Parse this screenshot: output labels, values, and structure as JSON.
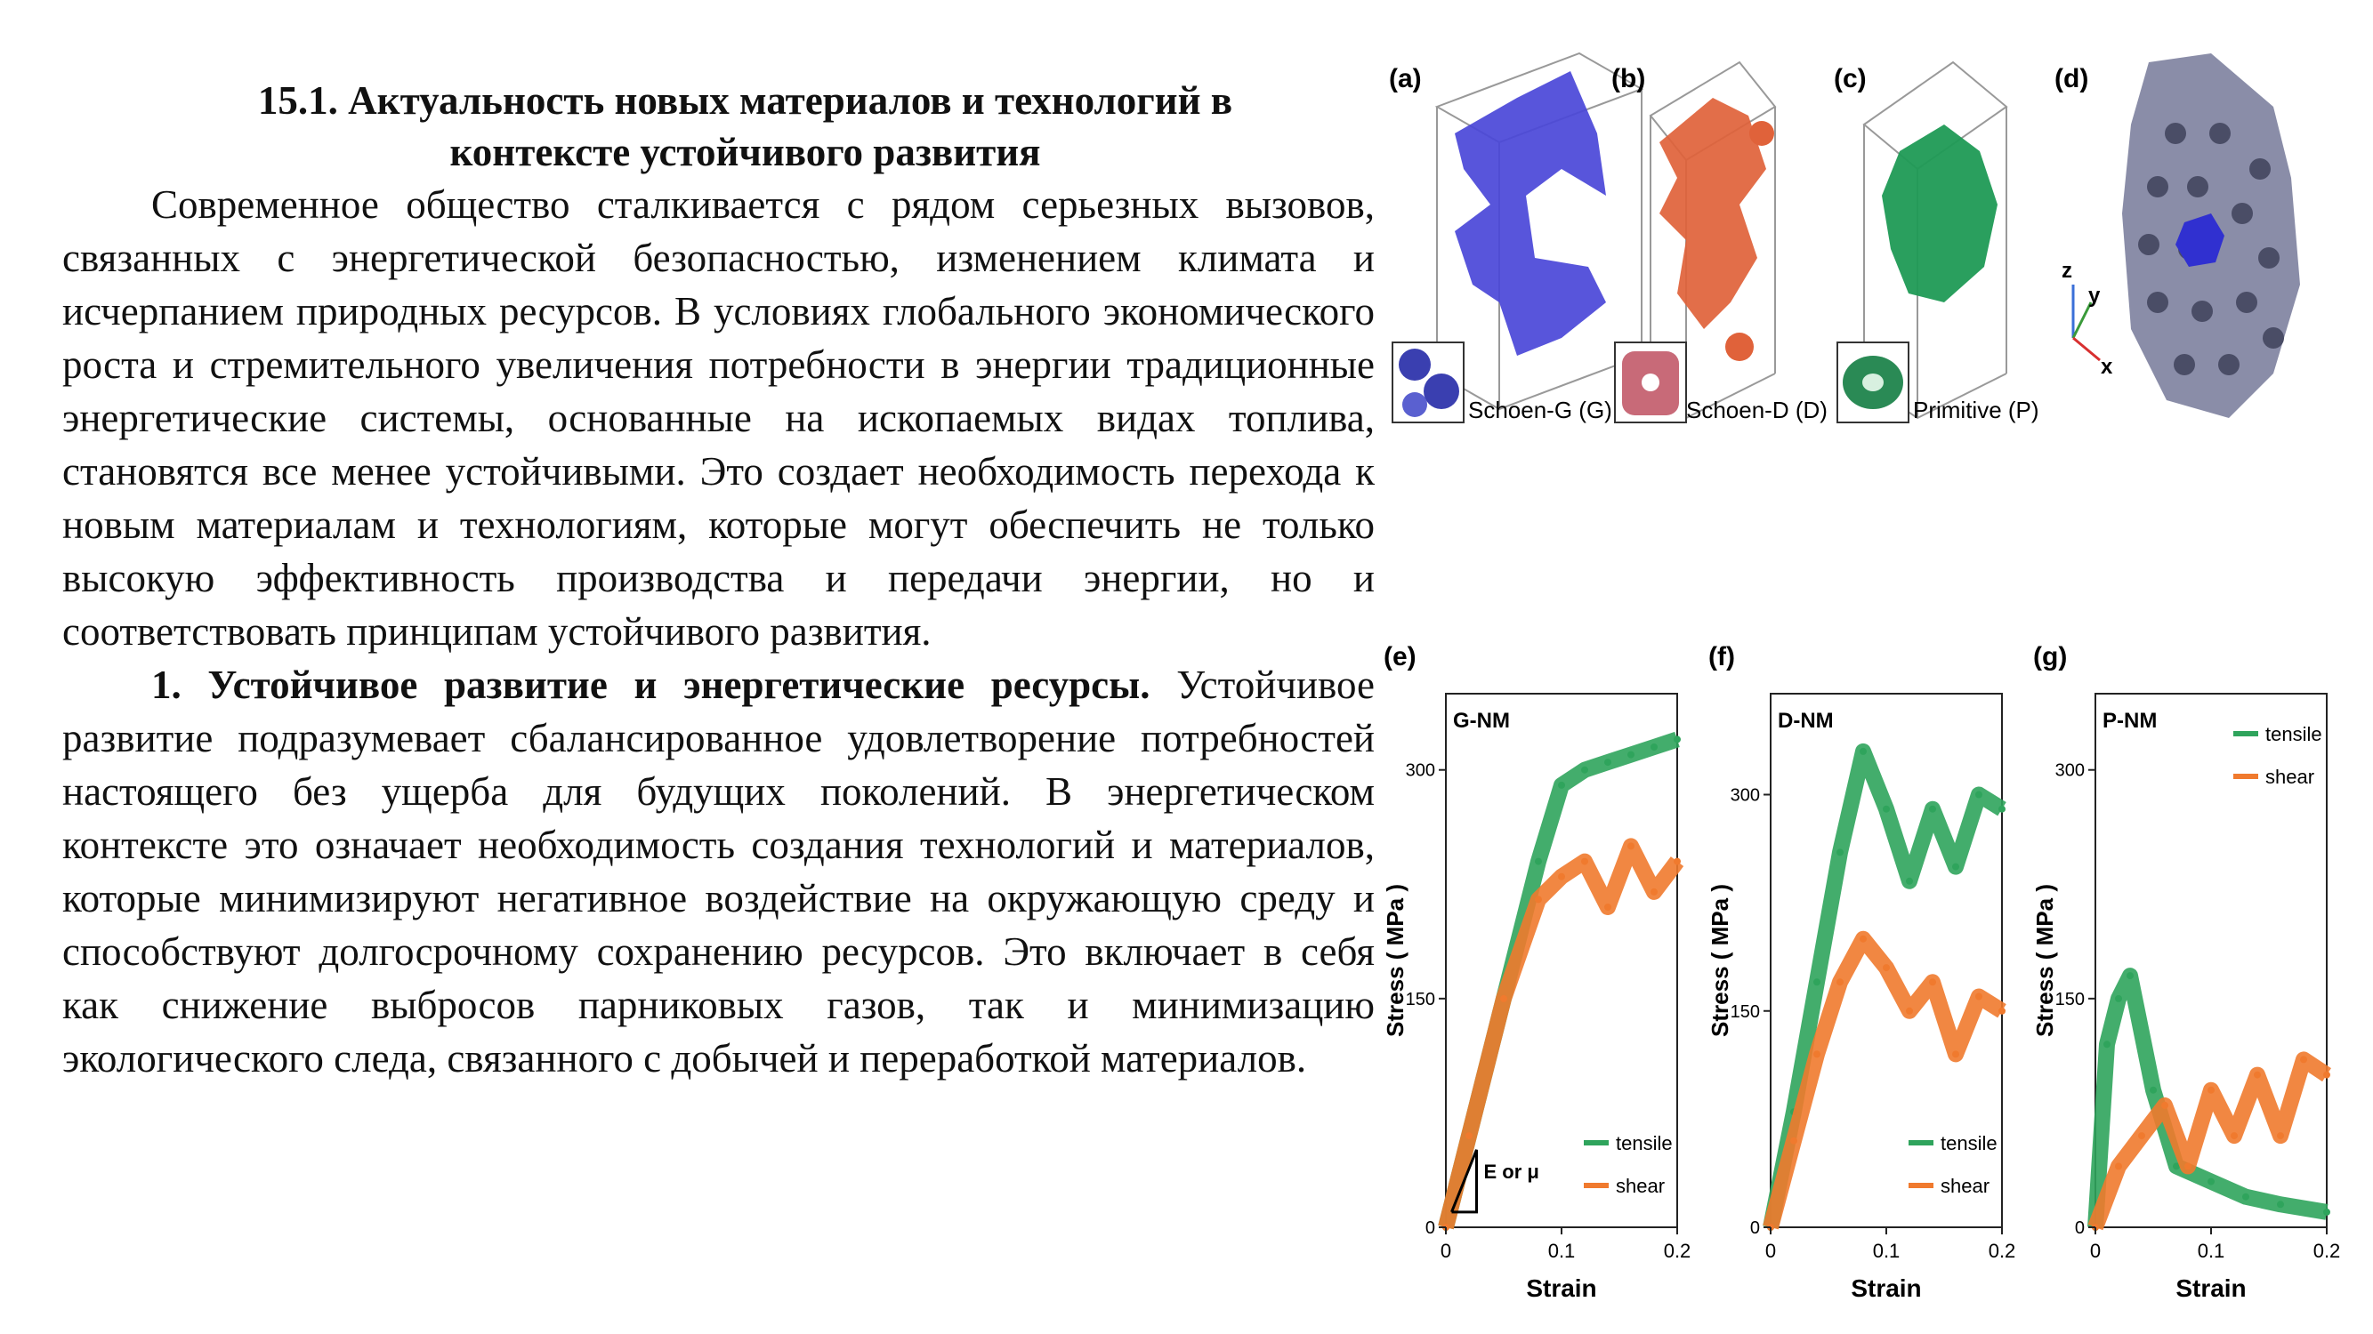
{
  "heading": {
    "line1": "15.1. Актуальность новых материалов и технологий в",
    "line2": "контексте устойчивого развития"
  },
  "paragraph1": "Современное общество сталкивается с рядом серьезных вызовов, связанных с энергетической безопасностью, изменением климата и исчерпанием природных ресурсов. В условиях глобального экономического роста и стремительного увеличения потребности в энергии традиционные энергетические системы, основанные на ископаемых видах топлива, становятся все менее устойчивыми. Это создает необходимость перехода к новым материалам и технологиям, которые могут обеспечить не только высокую эффективность производства и передачи энергии, но и соответствовать принципам устойчивого развития.",
  "paragraph2": {
    "bold": "1. Устойчивое развитие и энергетические ресурсы.",
    "rest": " Устойчивое развитие подразумевает сбалансированное удовлетворение потребностей настоящего без ущерба для будущих поколений. В энергетическом контексте это означает необходимость создания технологий и материалов, которые минимизируют негативное воздействие на окружающую среду и способствуют долгосрочному сохранению ресурсов. Это включает в себя как снижение выбросов парниковых газов, так и минимизацию экологического следа, связанного с добычей и переработкой материалов."
  },
  "figure": {
    "top_panels": [
      {
        "letter": "(a)",
        "caption": "Schoen-G (G)",
        "color": "#4a46d8",
        "inset_color": "#3a3fb0"
      },
      {
        "letter": "(b)",
        "caption": "Schoen-D (D)",
        "color": "#e0623a",
        "inset_color": "#c86a78"
      },
      {
        "letter": "(c)",
        "caption": "Primitive (P)",
        "color": "#1f9a55",
        "inset_color": "#2a8a55"
      },
      {
        "letter": "(d)",
        "caption": "",
        "color": "#7c7f9c",
        "inset_color": "#3030d0"
      }
    ],
    "axes_letters": {
      "z": "z",
      "y": "y",
      "x": "x"
    },
    "annotation": "E or μ",
    "colors": {
      "tensile": "#2fa45c",
      "shear": "#f07a2e"
    }
  },
  "chart_data": [
    {
      "type": "line",
      "panel": "(e)",
      "title": "G-NM",
      "xlabel": "Strain",
      "ylabel": "Stress ( MPa )",
      "xlim": [
        0,
        0.2
      ],
      "ylim": [
        0,
        350
      ],
      "xticks": [
        "0",
        "0.1",
        "0.2"
      ],
      "yticks": [
        "0",
        "150",
        "300"
      ],
      "legend": "bottom-right",
      "series": [
        {
          "name": "tensile",
          "x": [
            0,
            0.02,
            0.05,
            0.08,
            0.1,
            0.12,
            0.14,
            0.16,
            0.18,
            0.2
          ],
          "y": [
            0,
            60,
            150,
            240,
            290,
            300,
            305,
            310,
            315,
            320
          ]
        },
        {
          "name": "shear",
          "x": [
            0,
            0.02,
            0.05,
            0.08,
            0.1,
            0.12,
            0.14,
            0.16,
            0.18,
            0.2
          ],
          "y": [
            0,
            60,
            150,
            215,
            230,
            240,
            210,
            250,
            220,
            240
          ]
        }
      ]
    },
    {
      "type": "line",
      "panel": "(f)",
      "title": "D-NM",
      "xlabel": "Strain",
      "ylabel": "Stress ( MPa )",
      "xlim": [
        0,
        0.2
      ],
      "ylim": [
        0,
        370
      ],
      "xticks": [
        "0",
        "0.1",
        "0.2"
      ],
      "yticks": [
        "0",
        "150",
        "300"
      ],
      "legend": "bottom-right",
      "series": [
        {
          "name": "tensile",
          "x": [
            0,
            0.02,
            0.04,
            0.06,
            0.08,
            0.1,
            0.12,
            0.14,
            0.16,
            0.18,
            0.2
          ],
          "y": [
            0,
            80,
            170,
            260,
            330,
            290,
            240,
            290,
            250,
            300,
            290
          ]
        },
        {
          "name": "shear",
          "x": [
            0,
            0.02,
            0.04,
            0.06,
            0.08,
            0.1,
            0.12,
            0.14,
            0.16,
            0.18,
            0.2
          ],
          "y": [
            0,
            60,
            120,
            170,
            200,
            180,
            150,
            170,
            120,
            160,
            150
          ]
        }
      ]
    },
    {
      "type": "line",
      "panel": "(g)",
      "title": "P-NM",
      "xlabel": "Strain",
      "ylabel": "Stress ( MPa )",
      "xlim": [
        0,
        0.2
      ],
      "ylim": [
        0,
        350
      ],
      "xticks": [
        "0",
        "0.1",
        "0.2"
      ],
      "yticks": [
        "0",
        "150",
        "300"
      ],
      "legend": "top-right",
      "series": [
        {
          "name": "tensile",
          "x": [
            0,
            0.01,
            0.02,
            0.03,
            0.05,
            0.07,
            0.1,
            0.13,
            0.16,
            0.2
          ],
          "y": [
            0,
            120,
            150,
            165,
            90,
            40,
            30,
            20,
            15,
            10
          ]
        },
        {
          "name": "shear",
          "x": [
            0,
            0.02,
            0.04,
            0.06,
            0.08,
            0.1,
            0.12,
            0.14,
            0.16,
            0.18,
            0.2
          ],
          "y": [
            0,
            40,
            60,
            80,
            40,
            90,
            60,
            100,
            60,
            110,
            100
          ]
        }
      ]
    }
  ]
}
